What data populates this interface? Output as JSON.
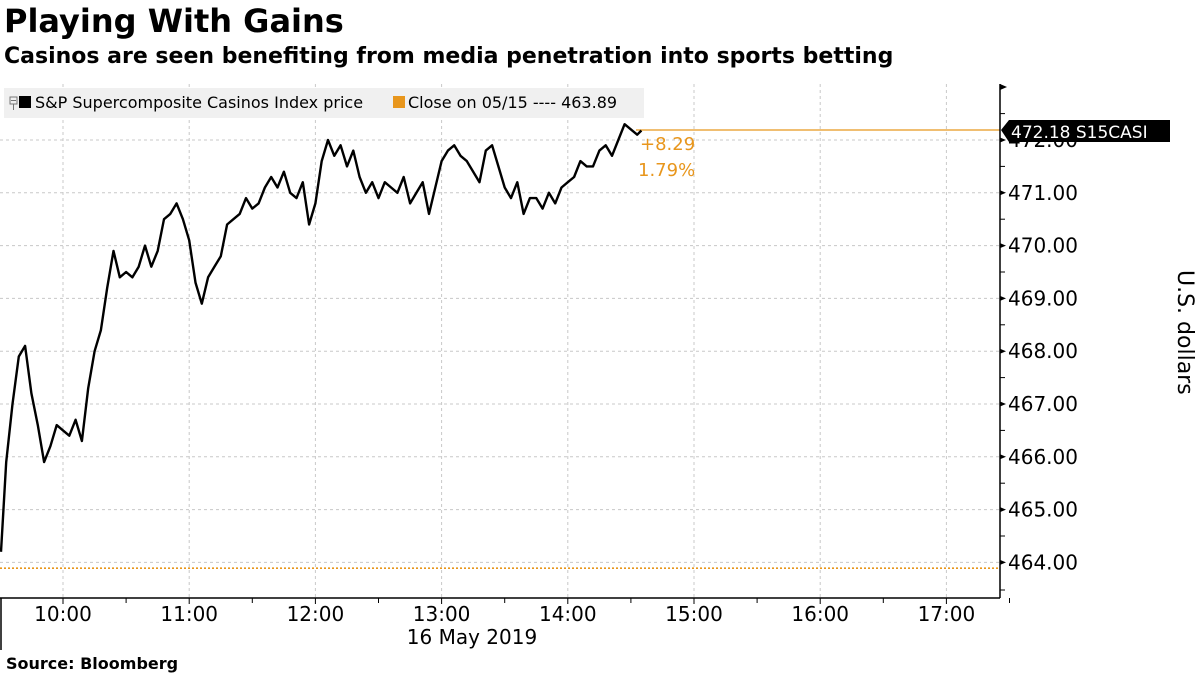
{
  "header": {
    "title": "Playing With Gains",
    "subtitle": "Casinos are seen benefiting from media penetration into sports betting"
  },
  "footer": {
    "source": "Source: Bloomberg"
  },
  "legend": {
    "series_label": "S&P Supercomposite Casinos Index price",
    "close_label": "Close on 05/15 ---- 463.89"
  },
  "annotations": {
    "change_abs": "+8.29",
    "change_pct": "1.79%",
    "last_price_tag": "472.18 S15CASI"
  },
  "axes": {
    "ylabel": "U.S. dollars",
    "xlabel": "16 May 2019"
  },
  "colors": {
    "price_line": "#000000",
    "close_line": "#e8961c",
    "grid": "#c8c8c8",
    "legend_bg": "#f0f0f0"
  },
  "chart_data": {
    "type": "line",
    "title": "Playing With Gains",
    "subtitle": "Casinos are seen benefiting from media penetration into sports betting",
    "xlabel": "16 May 2019",
    "ylabel": "U.S. dollars",
    "ylim": [
      463.4,
      473.0
    ],
    "yticks": [
      "464.00",
      "465.00",
      "466.00",
      "467.00",
      "468.00",
      "469.00",
      "470.00",
      "471.00",
      "472.00"
    ],
    "xticks": [
      "10:00",
      "11:00",
      "12:00",
      "13:00",
      "14:00",
      "15:00",
      "16:00",
      "17:00"
    ],
    "xrange": [
      "09:30",
      "17:25"
    ],
    "grid": true,
    "legend_position": "top-left",
    "series": [
      {
        "name": "S&P Supercomposite Casinos Index price",
        "color": "#000000",
        "x": [
          "09:30",
          "09:33",
          "09:36",
          "09:39",
          "09:42",
          "09:45",
          "09:48",
          "09:51",
          "09:54",
          "09:57",
          "10:00",
          "10:03",
          "10:06",
          "10:09",
          "10:12",
          "10:15",
          "10:18",
          "10:21",
          "10:24",
          "10:27",
          "10:30",
          "10:33",
          "10:36",
          "10:39",
          "10:42",
          "10:45",
          "10:48",
          "10:51",
          "10:54",
          "10:57",
          "11:00",
          "11:03",
          "11:06",
          "11:09",
          "11:12",
          "11:15",
          "11:18",
          "11:21",
          "11:24",
          "11:27",
          "11:30",
          "11:33",
          "11:36",
          "11:39",
          "11:42",
          "11:45",
          "11:48",
          "11:51",
          "11:54",
          "11:57",
          "12:00",
          "12:03",
          "12:06",
          "12:09",
          "12:12",
          "12:15",
          "12:18",
          "12:21",
          "12:24",
          "12:27",
          "12:30",
          "12:33",
          "12:36",
          "12:39",
          "12:42",
          "12:45",
          "12:48",
          "12:51",
          "12:54",
          "12:57",
          "13:00",
          "13:03",
          "13:06",
          "13:09",
          "13:12",
          "13:15",
          "13:18",
          "13:21",
          "13:24",
          "13:27",
          "13:30",
          "13:33",
          "13:36",
          "13:39",
          "13:42",
          "13:45",
          "13:48",
          "13:51",
          "13:54",
          "13:57",
          "14:00",
          "14:03",
          "14:06",
          "14:09",
          "14:12",
          "14:15",
          "14:18",
          "14:21",
          "14:24",
          "14:27",
          "14:30",
          "14:33",
          "14:35"
        ],
        "values": [
          464.2,
          465.9,
          467.0,
          467.9,
          468.1,
          467.2,
          466.6,
          465.9,
          466.2,
          466.6,
          466.5,
          466.4,
          466.7,
          466.3,
          467.3,
          468.0,
          468.4,
          469.2,
          469.9,
          469.4,
          469.5,
          469.4,
          469.6,
          470.0,
          469.6,
          469.9,
          470.5,
          470.6,
          470.8,
          470.5,
          470.1,
          469.3,
          468.9,
          469.4,
          469.6,
          469.8,
          470.4,
          470.5,
          470.6,
          470.9,
          470.7,
          470.8,
          471.1,
          471.3,
          471.1,
          471.4,
          471.0,
          470.9,
          471.2,
          470.4,
          470.8,
          471.6,
          472.0,
          471.7,
          471.9,
          471.5,
          471.8,
          471.3,
          471.0,
          471.2,
          470.9,
          471.2,
          471.1,
          471.0,
          471.3,
          470.8,
          471.0,
          471.2,
          470.6,
          471.1,
          471.6,
          471.8,
          471.9,
          471.7,
          471.6,
          471.4,
          471.2,
          471.8,
          471.9,
          471.5,
          471.1,
          470.9,
          471.2,
          470.6,
          470.9,
          470.9,
          470.7,
          471.0,
          470.8,
          471.1,
          471.2,
          471.3,
          471.6,
          471.5,
          471.5,
          471.8,
          471.9,
          471.7,
          472.0,
          472.3,
          472.2,
          472.1,
          472.18
        ]
      },
      {
        "name": "Close on 05/15",
        "color": "#e8961c",
        "style": "dotted",
        "values": [
          463.89
        ]
      }
    ],
    "annotations": [
      {
        "text": "+8.29",
        "color": "#e8961c"
      },
      {
        "text": "1.79%",
        "color": "#e8961c"
      },
      {
        "text": "472.18 S15CASI",
        "style": "black price tag on right axis"
      }
    ]
  }
}
